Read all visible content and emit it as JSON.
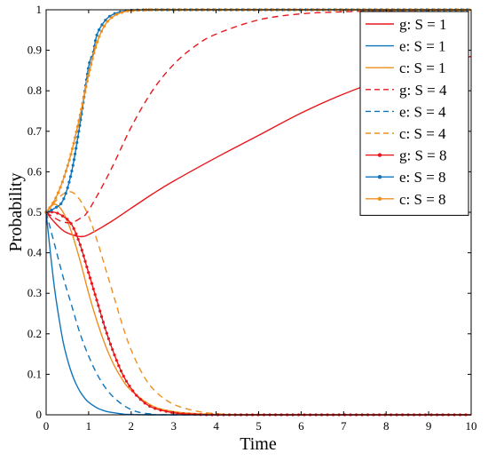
{
  "chart_data": {
    "type": "line",
    "title": "",
    "xlabel": "Time",
    "ylabel": "Probability",
    "xlim": [
      0,
      10
    ],
    "ylim": [
      0,
      1
    ],
    "xticks": [
      "0",
      "1",
      "2",
      "3",
      "4",
      "5",
      "6",
      "7",
      "8",
      "9",
      "10"
    ],
    "yticks": [
      "0",
      "0.1",
      "0.2",
      "0.3",
      "0.4",
      "0.5",
      "0.6",
      "0.7",
      "0.8",
      "0.9",
      "1"
    ],
    "grid": false,
    "legend_position": "top-right",
    "series": [
      {
        "name": "g: S = 1",
        "color": "#e8171c",
        "style": "solid",
        "marker": "none",
        "x": [
          0,
          0.2,
          0.4,
          0.6,
          0.8,
          1,
          1.5,
          2,
          2.5,
          3,
          4,
          5,
          6,
          7,
          8,
          9,
          10
        ],
        "y": [
          0.5,
          0.475,
          0.455,
          0.445,
          0.44,
          0.445,
          0.475,
          0.51,
          0.545,
          0.577,
          0.635,
          0.69,
          0.745,
          0.792,
          0.83,
          0.86,
          0.885
        ]
      },
      {
        "name": "e: S = 1",
        "color": "#0e74bc",
        "style": "solid",
        "marker": "none",
        "x": [
          0,
          0.1,
          0.2,
          0.3,
          0.4,
          0.5,
          0.6,
          0.7,
          0.8,
          0.9,
          1,
          1.2,
          1.4,
          1.6,
          1.8,
          2,
          3,
          10
        ],
        "y": [
          0.5,
          0.4,
          0.31,
          0.24,
          0.18,
          0.137,
          0.103,
          0.077,
          0.057,
          0.042,
          0.031,
          0.017,
          0.009,
          0.005,
          0.002,
          0.001,
          0,
          0
        ]
      },
      {
        "name": "c: S = 1",
        "color": "#ef8f1e",
        "style": "solid",
        "marker": "none",
        "x": [
          0,
          0.2,
          0.4,
          0.6,
          0.8,
          1,
          1.2,
          1.4,
          1.6,
          1.8,
          2,
          2.5,
          3,
          3.5,
          4,
          5,
          10
        ],
        "y": [
          0.5,
          0.52,
          0.5,
          0.45,
          0.38,
          0.3,
          0.23,
          0.17,
          0.122,
          0.086,
          0.06,
          0.022,
          0.008,
          0.003,
          0.001,
          0,
          0
        ]
      },
      {
        "name": "g: S = 4",
        "color": "#e8171c",
        "style": "dashed",
        "marker": "none",
        "x": [
          0,
          0.2,
          0.4,
          0.6,
          0.8,
          1,
          1.5,
          2,
          2.5,
          3,
          3.5,
          4,
          5,
          6,
          7,
          8,
          9,
          10
        ],
        "y": [
          0.5,
          0.486,
          0.476,
          0.475,
          0.485,
          0.505,
          0.6,
          0.71,
          0.8,
          0.865,
          0.91,
          0.94,
          0.975,
          0.99,
          0.995,
          0.998,
          0.999,
          1
        ]
      },
      {
        "name": "e: S = 4",
        "color": "#0e74bc",
        "style": "dashed",
        "marker": "none",
        "x": [
          0,
          0.2,
          0.4,
          0.6,
          0.8,
          1,
          1.2,
          1.4,
          1.6,
          1.8,
          2,
          2.2,
          2.5,
          3,
          10
        ],
        "y": [
          0.5,
          0.42,
          0.34,
          0.27,
          0.2,
          0.145,
          0.1,
          0.066,
          0.042,
          0.025,
          0.013,
          0.006,
          0.002,
          0,
          0
        ]
      },
      {
        "name": "c: S = 4",
        "color": "#ef8f1e",
        "style": "dashed",
        "marker": "none",
        "x": [
          0,
          0.2,
          0.4,
          0.6,
          0.8,
          1,
          1.2,
          1.4,
          1.6,
          1.8,
          2,
          2.3,
          2.6,
          3,
          3.5,
          4,
          5,
          10
        ],
        "y": [
          0.5,
          0.525,
          0.545,
          0.55,
          0.53,
          0.49,
          0.43,
          0.36,
          0.29,
          0.22,
          0.16,
          0.095,
          0.055,
          0.026,
          0.01,
          0.003,
          0,
          0
        ]
      },
      {
        "name": "g: S = 8",
        "color": "#e8171c",
        "style": "solid",
        "marker": "dot",
        "x": [
          0,
          0.2,
          0.4,
          0.6,
          0.8,
          1,
          1.2,
          1.4,
          1.6,
          1.8,
          2,
          2.2,
          2.5,
          3,
          3.5,
          4,
          5,
          10
        ],
        "y": [
          0.5,
          0.5,
          0.49,
          0.47,
          0.42,
          0.35,
          0.28,
          0.21,
          0.15,
          0.1,
          0.065,
          0.04,
          0.018,
          0.005,
          0.001,
          0,
          0,
          0
        ]
      },
      {
        "name": "e: S = 8",
        "color": "#0e74bc",
        "style": "solid",
        "marker": "dot",
        "x": [
          0,
          0.2,
          0.4,
          0.6,
          0.8,
          1,
          1.1,
          1.2,
          1.4,
          1.6,
          1.8,
          2,
          2.5,
          3,
          10
        ],
        "y": [
          0.5,
          0.51,
          0.53,
          0.6,
          0.72,
          0.86,
          0.89,
          0.94,
          0.975,
          0.99,
          0.996,
          0.999,
          1,
          1,
          1
        ]
      },
      {
        "name": "c: S = 8",
        "color": "#ef8f1e",
        "style": "solid",
        "marker": "dot",
        "x": [
          0,
          0.2,
          0.4,
          0.6,
          0.8,
          1,
          1.2,
          1.4,
          1.6,
          1.8,
          2,
          2.5,
          3,
          10
        ],
        "y": [
          0.5,
          0.53,
          0.58,
          0.65,
          0.74,
          0.84,
          0.92,
          0.965,
          0.985,
          0.994,
          0.998,
          1,
          1,
          1
        ]
      }
    ]
  }
}
